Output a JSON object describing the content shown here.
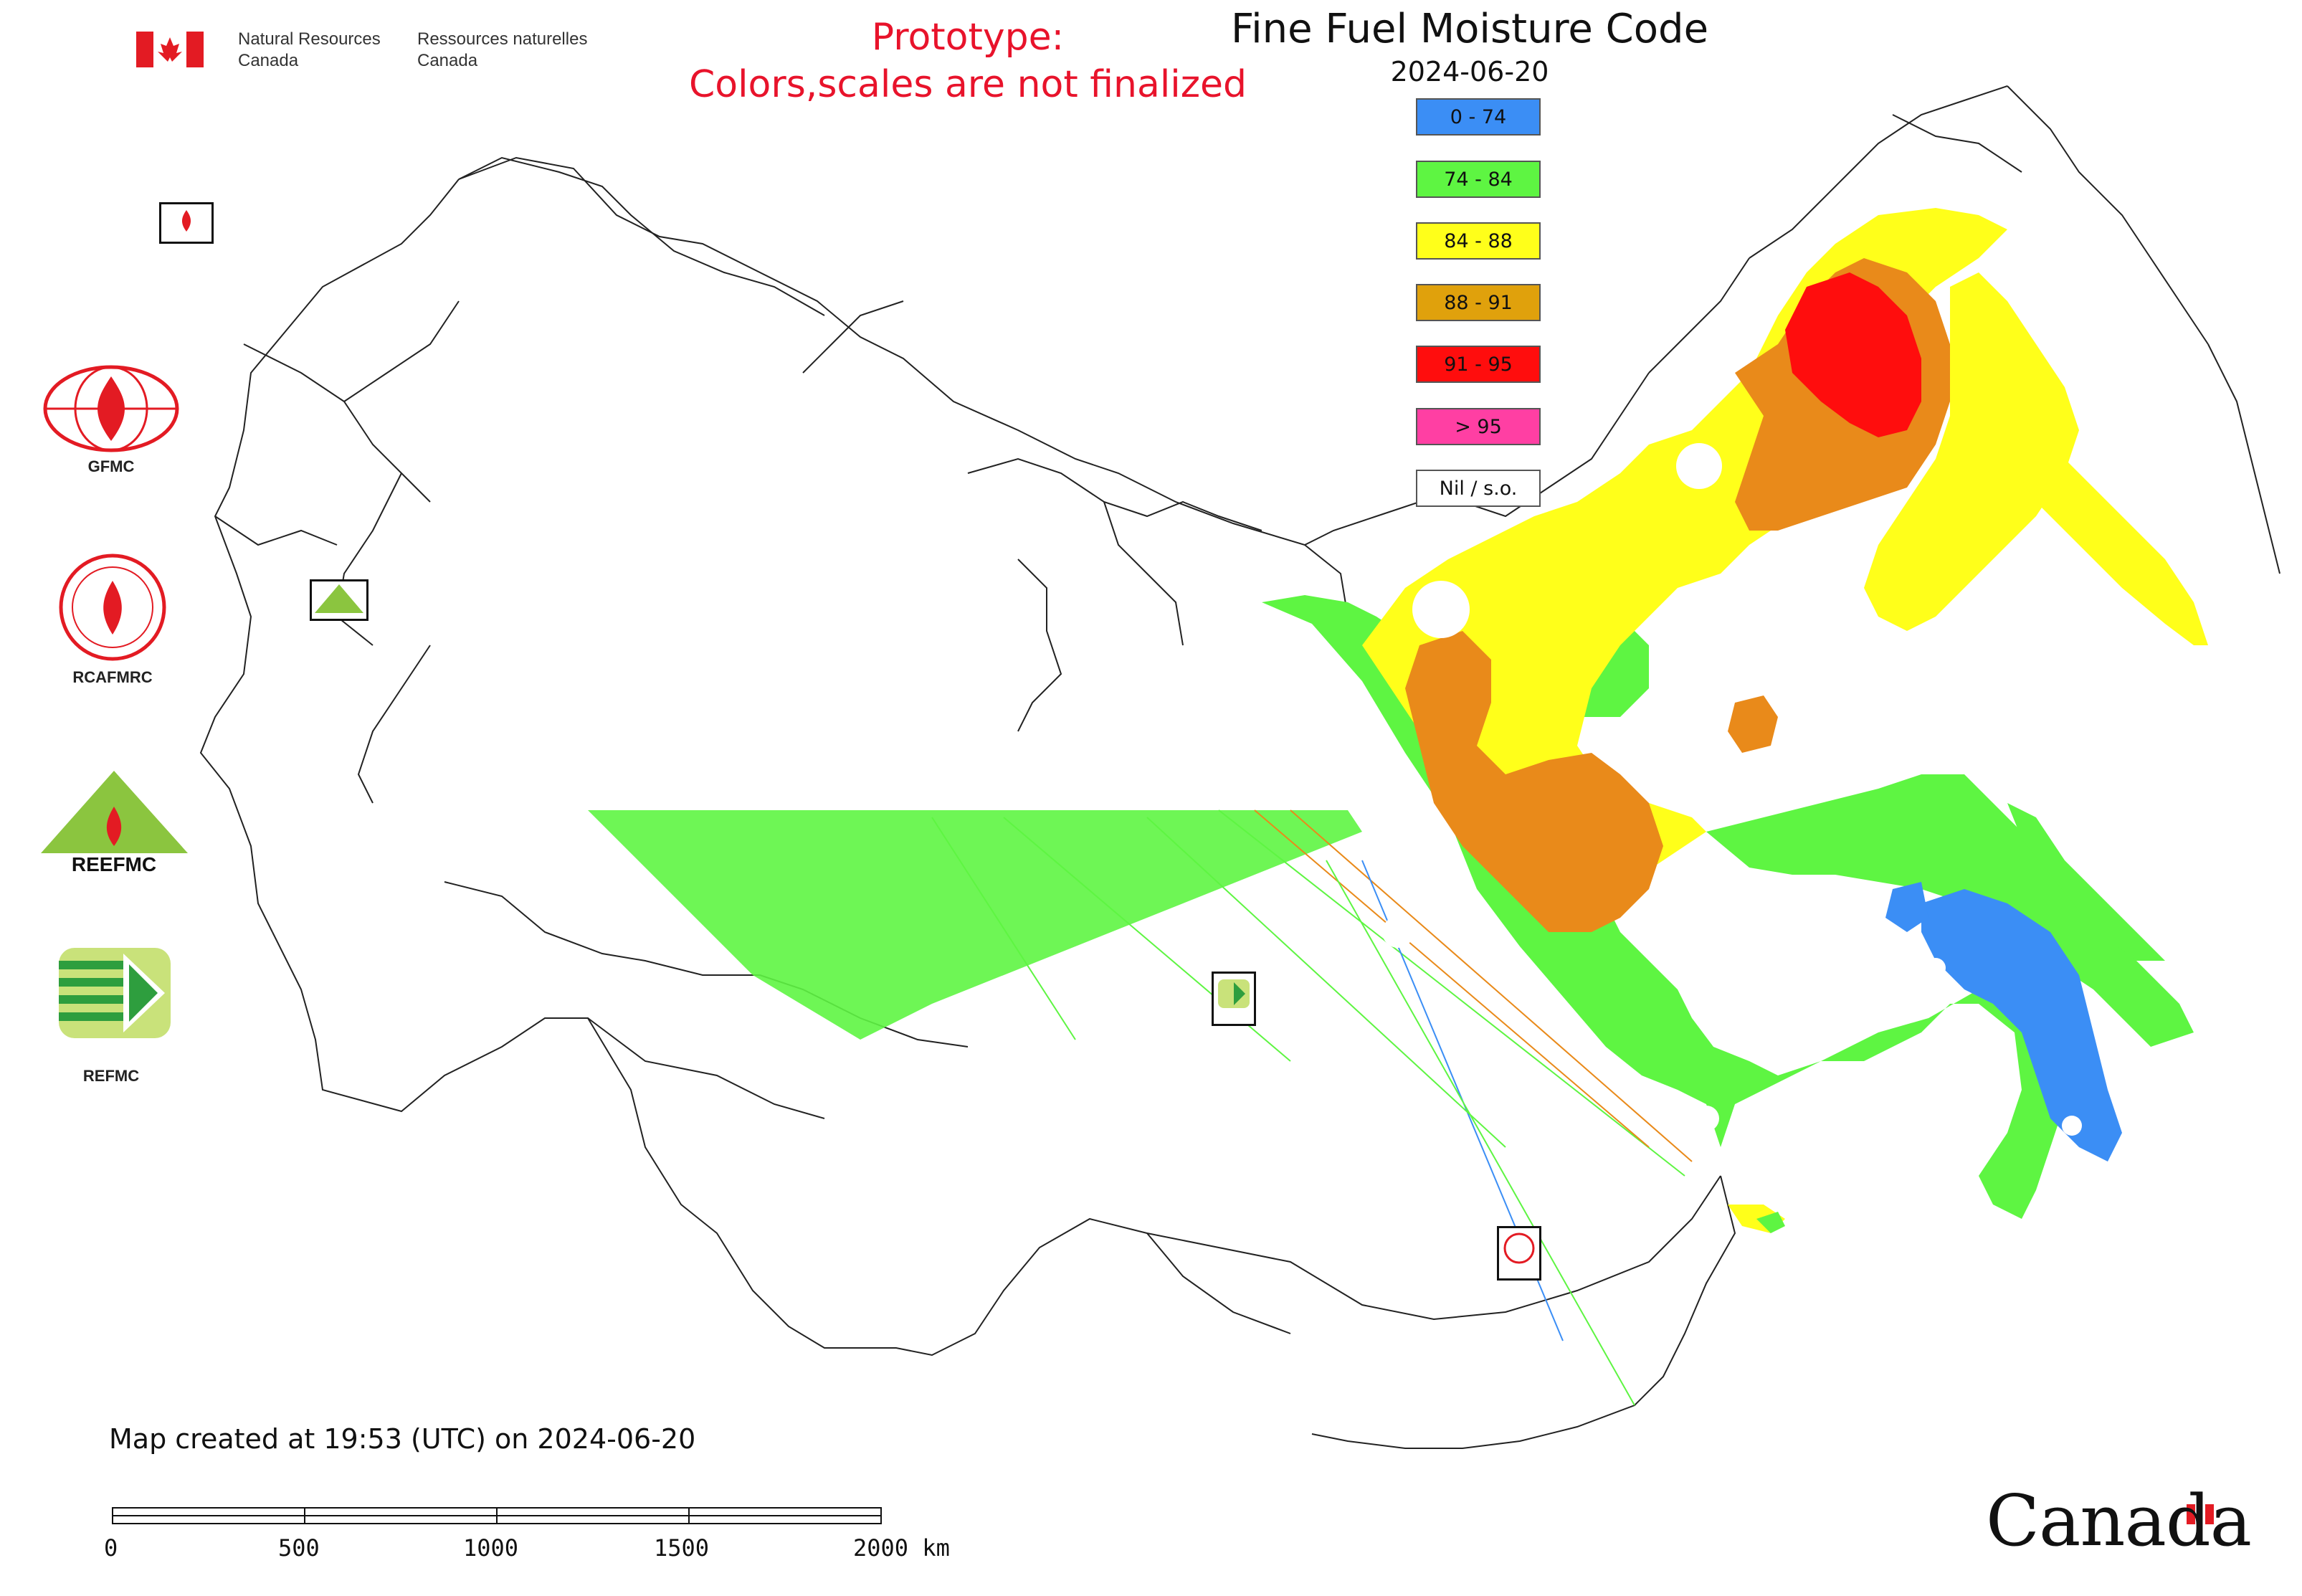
{
  "map": {
    "title": "Fine Fuel Moisture Code",
    "date": "2024-06-20",
    "prototype_line1": "Prototype:",
    "prototype_line2": "Colors,scales are not finalized",
    "created": "Map created at 19:53 (UTC) on 2024-06-20"
  },
  "header": {
    "nrcan_en_1": "Natural Resources",
    "nrcan_en_2": "Canada",
    "nrcan_fr_1": "Ressources naturelles",
    "nrcan_fr_2": "Canada"
  },
  "legend": [
    {
      "label": "0 - 74",
      "color": "#3b8ef5"
    },
    {
      "label": "74 - 84",
      "color": "#5ef542"
    },
    {
      "label": "84 - 88",
      "color": "#ffff1a"
    },
    {
      "label": "88 - 91",
      "color": "#e0a10c"
    },
    {
      "label": "91 - 95",
      "color": "#ff0d0d"
    },
    {
      "label": "> 95",
      "color": "#ff3fa3"
    },
    {
      "label": "Nil / s.o.",
      "color": "#ffffff"
    }
  ],
  "logos": {
    "gfmc": "GFMC",
    "rcafmrc": "RCAFMRC",
    "reefmc_text": "REEFMC",
    "refmc": "REFMC"
  },
  "scalebar": {
    "labels": [
      "0",
      "500",
      "1000",
      "1500",
      "2000 km"
    ]
  },
  "footer": {
    "wordmark": "Canada"
  }
}
